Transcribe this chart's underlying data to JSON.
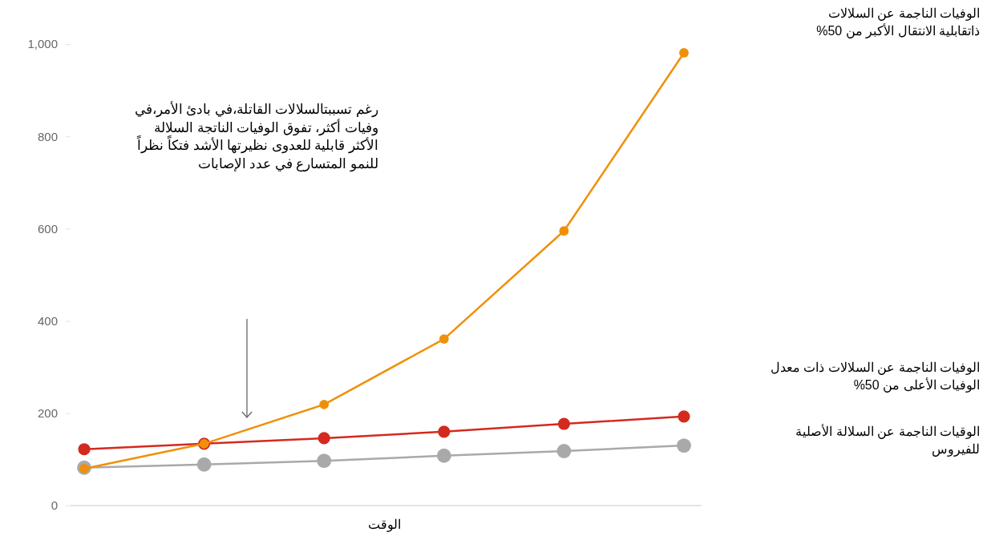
{
  "chart_data": {
    "type": "line",
    "xlabel": "الوقت",
    "categories": [
      null,
      null,
      null,
      null,
      null,
      null
    ],
    "series": [
      {
        "name": "الوقيات الناجمة عن السلالة الأصلية للفيروس",
        "color": "#a9a9a9",
        "values": [
          82,
          89,
          97,
          108,
          118,
          130
        ]
      },
      {
        "name": "الوفيات الناجمة عن السلالات ذات معدل الوفيات الأعلى من 50%",
        "color": "#d42a1f",
        "values": [
          122,
          134,
          146,
          160,
          177,
          193
        ]
      },
      {
        "name": "الوفيات الناجمة عن السلالات ذاتقابلية الانتقال الأكبر من 50%",
        "color": "#f0900a",
        "values": [
          80,
          134,
          219,
          361,
          595,
          981
        ]
      }
    ],
    "ylim": [
      0,
      1000
    ],
    "yticks": [
      0,
      200,
      400,
      600,
      800,
      {
        "value": 1000,
        "label": "1,000"
      }
    ],
    "grid": false,
    "marker": "circle",
    "line_style": "solid",
    "annotations": [
      "رغم تسببتالسلالات القاتلة،في بادئ الأمر،في وفيات أكثر، تفوق الوفيات الناتجة السلالة الأكثر قابلية للعدوى نظيرتها الأشد فتكاً نظراً للنمو المتسارع في عدد الإصابات"
    ]
  }
}
